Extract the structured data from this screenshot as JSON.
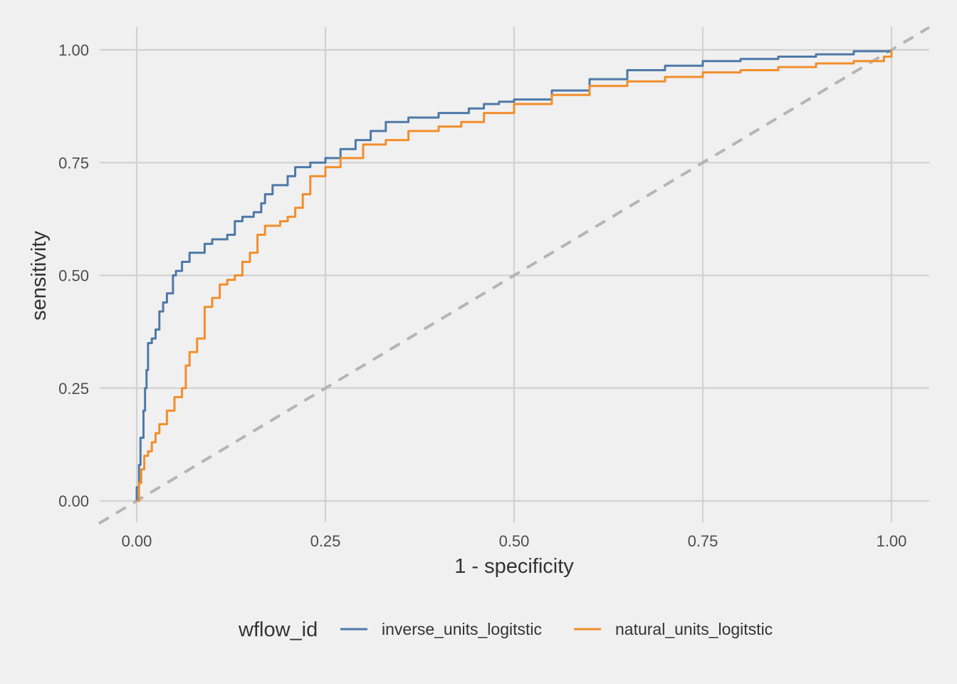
{
  "chart_data": {
    "type": "line",
    "title": "",
    "xlabel": "1 - specificity",
    "ylabel": "sensitivity",
    "xlim": [
      -0.05,
      1.05
    ],
    "ylim": [
      -0.05,
      1.05
    ],
    "x_ticks": [
      "0.00",
      "0.25",
      "0.50",
      "0.75",
      "1.00"
    ],
    "y_ticks": [
      "0.00",
      "0.25",
      "0.50",
      "0.75",
      "1.00"
    ],
    "grid": true,
    "legend": {
      "title": "wflow_id",
      "position": "bottom"
    },
    "reference_line": {
      "style": "dashed",
      "color": "#b5b5b5",
      "x": [
        -0.05,
        1.05
      ],
      "y": [
        -0.05,
        1.05
      ]
    },
    "series": [
      {
        "name": "inverse_units_logitstic",
        "color": "#4e79a7",
        "x": [
          0.0,
          0.0,
          0.003,
          0.005,
          0.009,
          0.011,
          0.013,
          0.015,
          0.02,
          0.025,
          0.03,
          0.035,
          0.04,
          0.048,
          0.052,
          0.06,
          0.07,
          0.09,
          0.1,
          0.12,
          0.13,
          0.14,
          0.155,
          0.165,
          0.17,
          0.18,
          0.2,
          0.21,
          0.23,
          0.25,
          0.27,
          0.29,
          0.31,
          0.33,
          0.36,
          0.4,
          0.44,
          0.46,
          0.48,
          0.5,
          0.55,
          0.6,
          0.65,
          0.7,
          0.75,
          0.8,
          0.85,
          0.9,
          0.95,
          1.0
        ],
        "y": [
          0.0,
          0.03,
          0.08,
          0.14,
          0.2,
          0.25,
          0.29,
          0.35,
          0.36,
          0.38,
          0.42,
          0.44,
          0.46,
          0.5,
          0.51,
          0.53,
          0.55,
          0.57,
          0.58,
          0.59,
          0.62,
          0.63,
          0.64,
          0.66,
          0.68,
          0.7,
          0.72,
          0.74,
          0.75,
          0.76,
          0.78,
          0.8,
          0.82,
          0.84,
          0.85,
          0.86,
          0.87,
          0.88,
          0.885,
          0.89,
          0.91,
          0.935,
          0.955,
          0.965,
          0.975,
          0.98,
          0.985,
          0.99,
          0.997,
          1.0
        ]
      },
      {
        "name": "natural_units_logitstic",
        "color": "#f28e2b",
        "x": [
          0.0,
          0.003,
          0.006,
          0.01,
          0.015,
          0.02,
          0.025,
          0.03,
          0.04,
          0.05,
          0.06,
          0.065,
          0.07,
          0.08,
          0.09,
          0.1,
          0.11,
          0.12,
          0.13,
          0.14,
          0.15,
          0.16,
          0.17,
          0.19,
          0.2,
          0.21,
          0.22,
          0.23,
          0.25,
          0.27,
          0.3,
          0.33,
          0.36,
          0.4,
          0.43,
          0.46,
          0.5,
          0.55,
          0.6,
          0.65,
          0.7,
          0.75,
          0.8,
          0.85,
          0.9,
          0.95,
          0.99,
          1.0
        ],
        "y": [
          0.0,
          0.04,
          0.07,
          0.1,
          0.11,
          0.13,
          0.15,
          0.17,
          0.2,
          0.23,
          0.25,
          0.3,
          0.33,
          0.36,
          0.43,
          0.45,
          0.48,
          0.49,
          0.5,
          0.53,
          0.55,
          0.59,
          0.61,
          0.62,
          0.63,
          0.65,
          0.68,
          0.72,
          0.74,
          0.76,
          0.79,
          0.8,
          0.82,
          0.83,
          0.84,
          0.86,
          0.88,
          0.9,
          0.92,
          0.93,
          0.94,
          0.95,
          0.955,
          0.962,
          0.97,
          0.975,
          0.985,
          1.0
        ]
      }
    ]
  }
}
